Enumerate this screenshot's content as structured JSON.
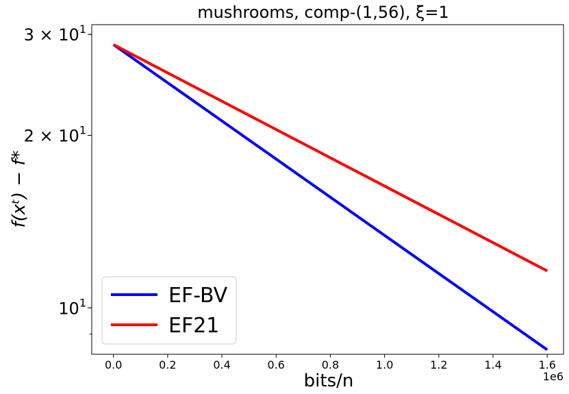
{
  "chart_data": {
    "type": "line",
    "title": "mushrooms, comp-(1,56), ξ=1",
    "xlabel": "bits/n",
    "ylabel": "f(xᵗ) − f*",
    "x_offset_label": "1e6",
    "xlim": [
      -80000,
      1660000
    ],
    "ylim": [
      8.3,
      31.2
    ],
    "yscale": "log",
    "x_ticks": [
      0,
      200000,
      400000,
      600000,
      800000,
      1000000,
      1200000,
      1400000,
      1600000
    ],
    "x_tick_labels": [
      "0.0",
      "0.2",
      "0.4",
      "0.6",
      "0.8",
      "1.0",
      "1.2",
      "1.4",
      "1.6"
    ],
    "y_major_ticks": [
      {
        "value": 30,
        "mantissa": "3",
        "base": "10",
        "exp": "1"
      },
      {
        "value": 20,
        "mantissa": "2",
        "base": "10",
        "exp": "1"
      },
      {
        "value": 10,
        "mantissa": "",
        "base": "10",
        "exp": "1"
      }
    ],
    "y_minor_ticks": [
      9,
      10,
      20,
      30
    ],
    "legend_position": "lower-left",
    "series": [
      {
        "name": "EF-BV",
        "color": "#0000ff",
        "x": [
          0,
          1600000
        ],
        "y": [
          28.8,
          8.45
        ]
      },
      {
        "name": "EF21",
        "color": "#ff0000",
        "x": [
          0,
          1600000
        ],
        "y": [
          28.8,
          11.6
        ]
      }
    ]
  }
}
